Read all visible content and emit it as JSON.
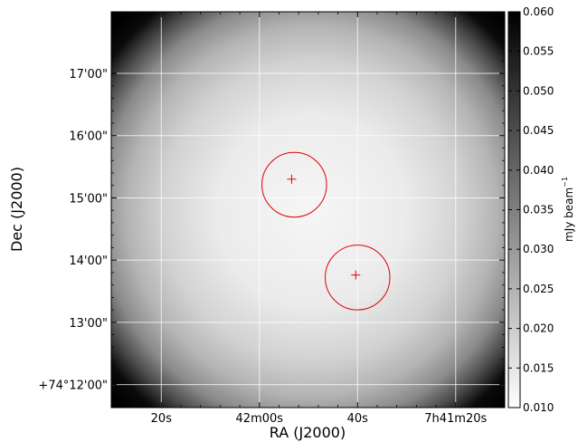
{
  "chart_data": {
    "type": "heatmap",
    "x_label": "RA (J2000)",
    "y_label": "Dec (J2000)",
    "x_ticks": [
      {
        "label": "20s",
        "ra_sec": 2540
      },
      {
        "label": "42m00s",
        "ra_sec": 2520
      },
      {
        "label": "40s",
        "ra_sec": 2500
      },
      {
        "label": "7h41m20s",
        "ra_sec": 2480
      }
    ],
    "y_ticks": [
      {
        "label": "+74°12'00\"",
        "dec_arcmin": 0
      },
      {
        "label": "13'00\"",
        "dec_arcmin": 1
      },
      {
        "label": "14'00\"",
        "dec_arcmin": 2
      },
      {
        "label": "15'00\"",
        "dec_arcmin": 3
      },
      {
        "label": "16'00\"",
        "dec_arcmin": 4
      },
      {
        "label": "17'00\"",
        "dec_arcmin": 5
      }
    ],
    "x_range_ra_sec": [
      2550.2,
      2470.0
    ],
    "y_range_dec_arcmin": [
      -0.37,
      5.99
    ],
    "grid": true,
    "colormap": "gray_r",
    "colorbar": {
      "label": "mJy beam",
      "label_exponent": "−1",
      "min": 0.01,
      "max": 0.06,
      "ticks": [
        "0.010",
        "0.015",
        "0.020",
        "0.025",
        "0.030",
        "0.035",
        "0.040",
        "0.045",
        "0.050",
        "0.055",
        "0.060"
      ]
    },
    "sources": [
      {
        "ra_sec": 2513.43,
        "dec_arcmin": 3.3,
        "circle_ra_sec": 2512.9,
        "circle_dec_arcmin": 3.21,
        "radius_arcmin": 0.52
      },
      {
        "ra_sec": 2500.37,
        "dec_arcmin": 1.76,
        "circle_ra_sec": 2500.0,
        "circle_dec_arcmin": 1.72,
        "radius_arcmin": 0.52
      }
    ],
    "colors": {
      "marker": "#e00000",
      "grid": "#ffffff",
      "axes": "#000000"
    }
  }
}
